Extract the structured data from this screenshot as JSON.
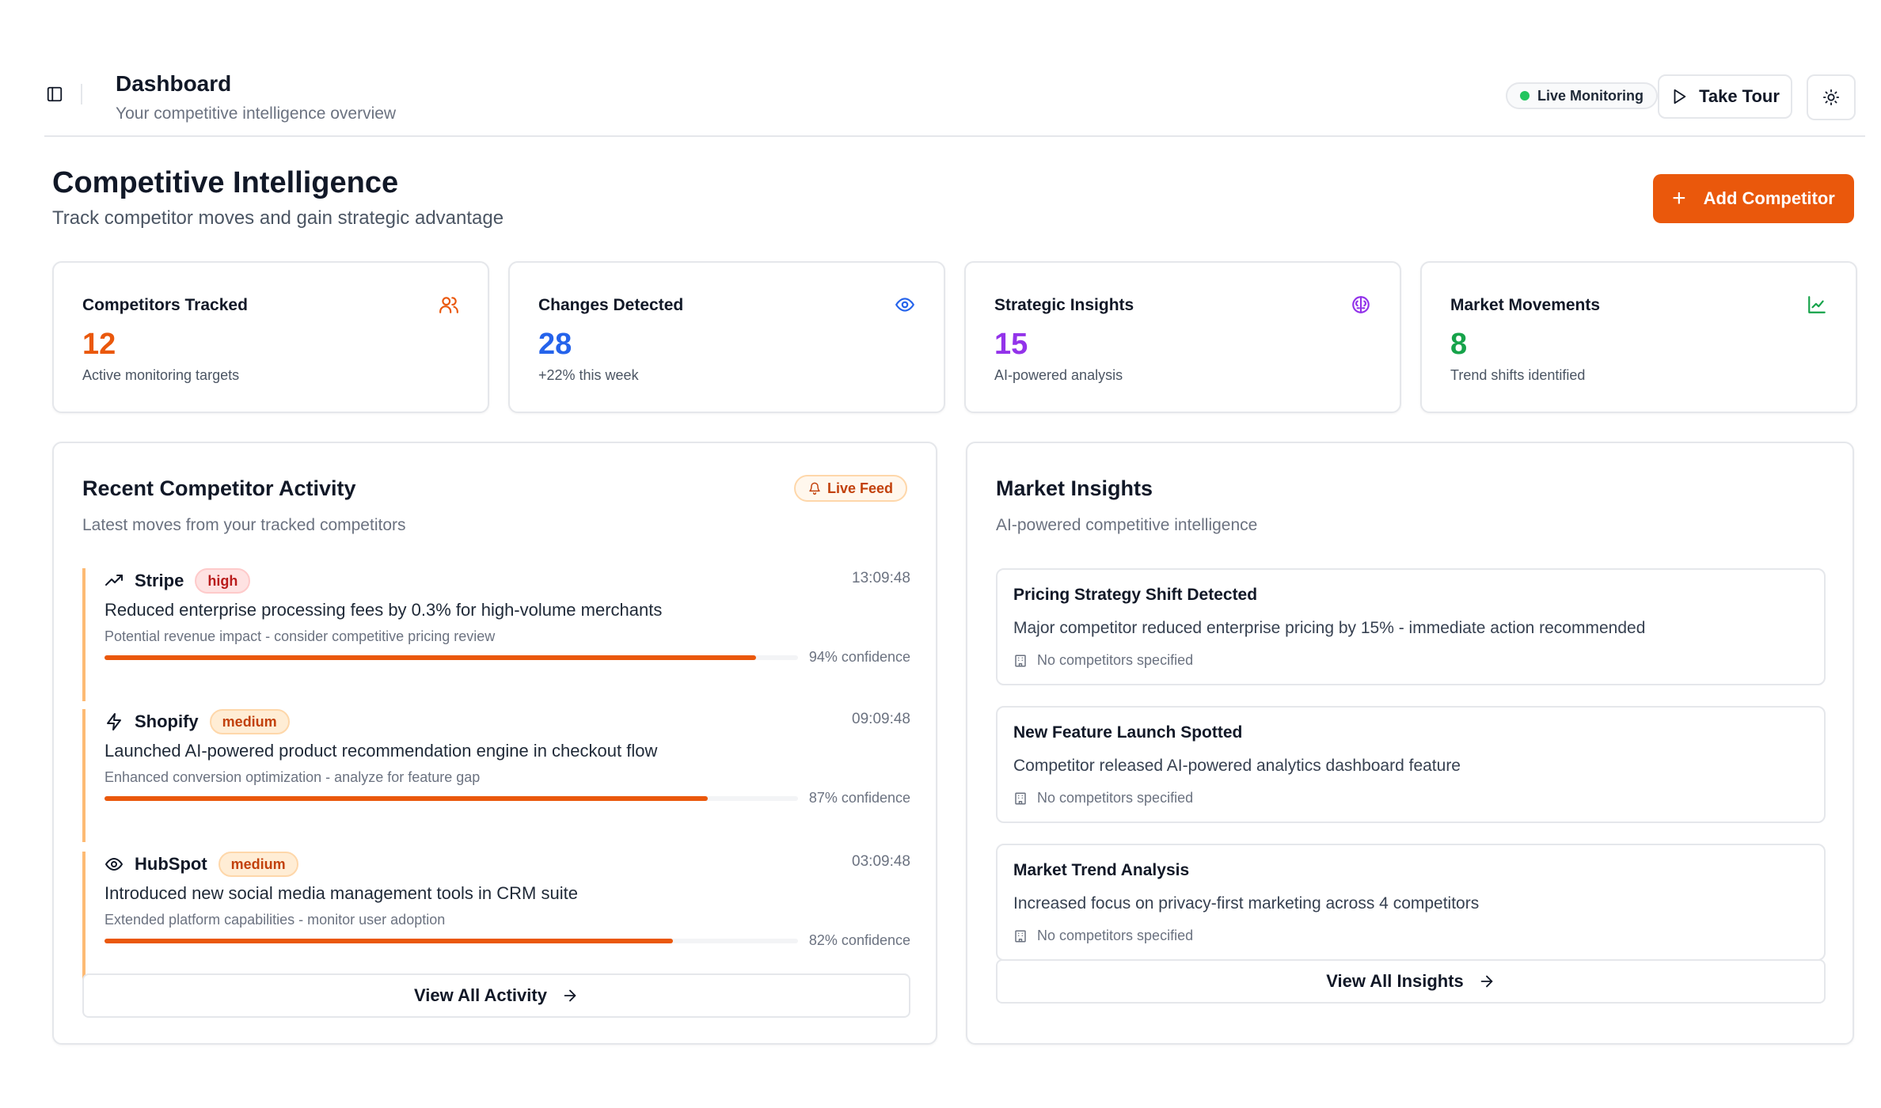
{
  "header": {
    "title": "Dashboard",
    "subtitle": "Your competitive intelligence overview",
    "live_status": "Live Monitoring",
    "tour_label": "Take Tour"
  },
  "page": {
    "title": "Competitive Intelligence",
    "subtitle": "Track competitor moves and gain strategic advantage",
    "add_button": "Add Competitor"
  },
  "stats": [
    {
      "label": "Competitors Tracked",
      "value": "12",
      "desc": "Active monitoring targets",
      "icon": "users-icon",
      "color": "#ea580c"
    },
    {
      "label": "Changes Detected",
      "value": "28",
      "desc": "+22% this week",
      "icon": "eye-icon",
      "color": "#2563eb"
    },
    {
      "label": "Strategic Insights",
      "value": "15",
      "desc": "AI-powered analysis",
      "icon": "brain-icon",
      "color": "#9333ea"
    },
    {
      "label": "Market Movements",
      "value": "8",
      "desc": "Trend shifts identified",
      "icon": "chart-line-icon",
      "color": "#16a34a"
    }
  ],
  "activity": {
    "title": "Recent Competitor Activity",
    "subtitle": "Latest moves from your tracked competitors",
    "badge": "Live Feed",
    "items": [
      {
        "name": "Stripe",
        "severity": "high",
        "time": "13:09:48",
        "desc": "Reduced enterprise processing fees by 0.3% for high-volume merchants",
        "impact": "Potential revenue impact - consider competitive pricing review",
        "confidence": 94,
        "confidence_label": "94% confidence",
        "icon": "trending-up-icon"
      },
      {
        "name": "Shopify",
        "severity": "medium",
        "time": "09:09:48",
        "desc": "Launched AI-powered product recommendation engine in checkout flow",
        "impact": "Enhanced conversion optimization - analyze for feature gap",
        "confidence": 87,
        "confidence_label": "87% confidence",
        "icon": "zap-icon"
      },
      {
        "name": "HubSpot",
        "severity": "medium",
        "time": "03:09:48",
        "desc": "Introduced new social media management tools in CRM suite",
        "impact": "Extended platform capabilities - monitor user adoption",
        "confidence": 82,
        "confidence_label": "82% confidence",
        "icon": "eye-icon"
      }
    ],
    "view_all": "View All Activity"
  },
  "insights": {
    "title": "Market Insights",
    "subtitle": "AI-powered competitive intelligence",
    "items": [
      {
        "title": "Pricing Strategy Shift Detected",
        "desc": "Major competitor reduced enterprise pricing by 15% - immediate action recommended",
        "meta": "No competitors specified"
      },
      {
        "title": "New Feature Launch Spotted",
        "desc": "Competitor released AI-powered analytics dashboard feature",
        "meta": "No competitors specified"
      },
      {
        "title": "Market Trend Analysis",
        "desc": "Increased focus on privacy-first marketing across 4 competitors",
        "meta": "No competitors specified"
      }
    ],
    "view_all": "View All Insights"
  }
}
